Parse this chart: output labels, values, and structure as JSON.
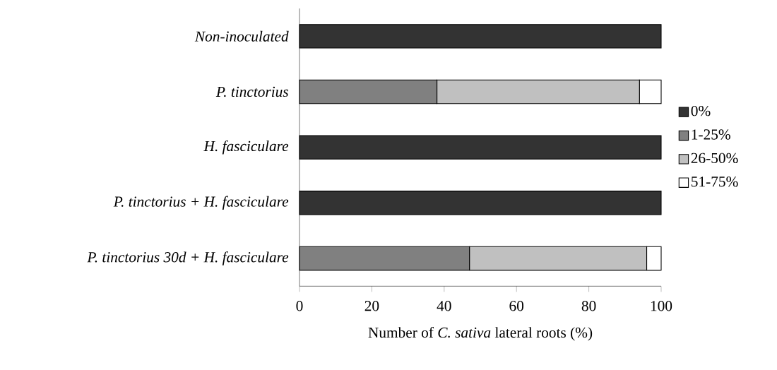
{
  "chart_data": {
    "type": "bar",
    "orientation": "horizontal",
    "stacked": true,
    "categories": [
      "Non-inoculated",
      "P. tinctorius",
      "H. fasciculare",
      "P. tinctorius + H. fasciculare",
      "P. tinctorius 30d + H. fasciculare"
    ],
    "series": [
      {
        "name": "0%",
        "color": "#333333",
        "values": [
          100,
          0,
          100,
          100,
          0
        ]
      },
      {
        "name": "1-25%",
        "color": "#808080",
        "values": [
          0,
          38,
          0,
          0,
          47
        ]
      },
      {
        "name": "26-50%",
        "color": "#c0c0c0",
        "values": [
          0,
          56,
          0,
          0,
          49
        ]
      },
      {
        "name": "51-75%",
        "color": "#ffffff",
        "values": [
          0,
          6,
          0,
          0,
          4
        ]
      }
    ],
    "xlabel": "Number of *C. sativa* lateral roots (%)",
    "xlim": [
      0,
      100
    ],
    "xticks": [
      0,
      20,
      40,
      60,
      80,
      100
    ],
    "legend": "right",
    "grid": false
  }
}
